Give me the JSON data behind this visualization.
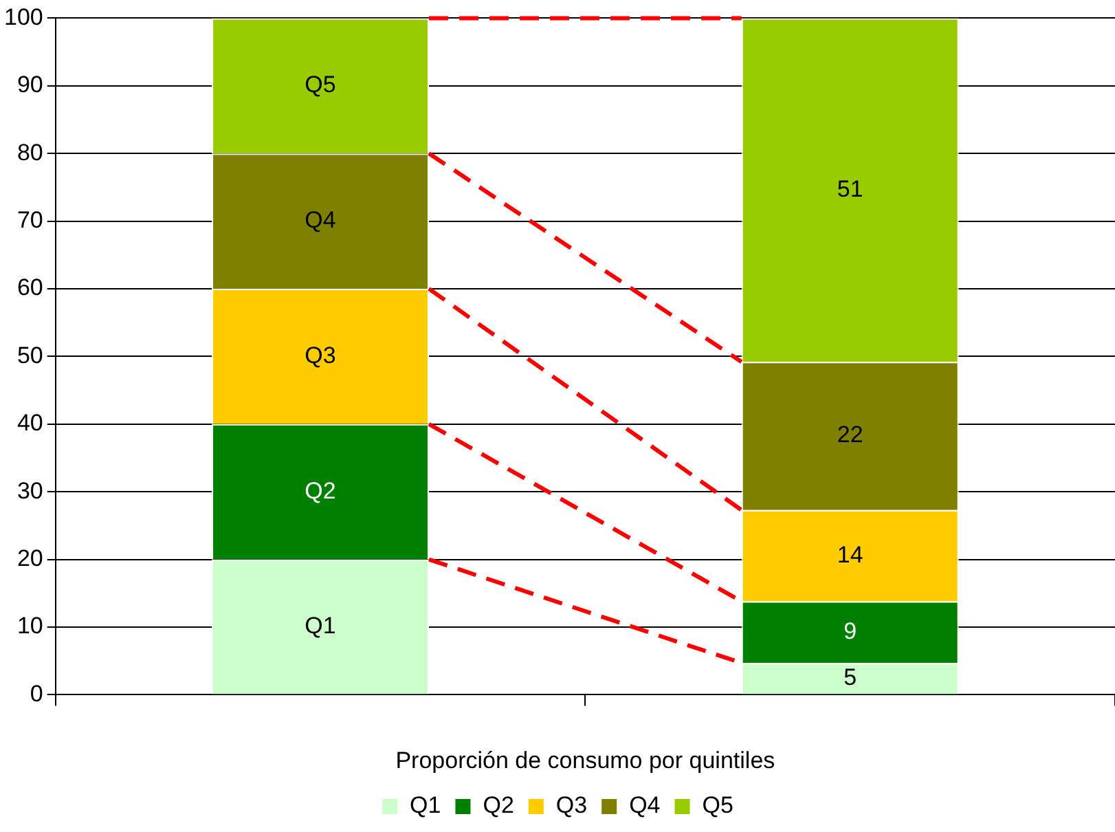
{
  "chart_data": {
    "type": "bar",
    "stacked": true,
    "xlabel": "Proporción de consumo por quintiles",
    "categories": [
      null,
      null
    ],
    "series": [
      {
        "name": "Q1",
        "color": "#ccffcc",
        "values": [
          20,
          4.7
        ],
        "value_labels": [
          "Q1",
          "5"
        ]
      },
      {
        "name": "Q2",
        "color": "#008000",
        "values": [
          20,
          9.1
        ],
        "value_labels": [
          "Q2",
          "9"
        ]
      },
      {
        "name": "Q3",
        "color": "#ffcc00",
        "values": [
          20,
          13.5
        ],
        "value_labels": [
          "Q3",
          "14"
        ]
      },
      {
        "name": "Q4",
        "color": "#808000",
        "values": [
          20,
          21.9
        ],
        "value_labels": [
          "Q4",
          "22"
        ]
      },
      {
        "name": "Q5",
        "color": "#99cc00",
        "values": [
          20,
          50.8
        ],
        "value_labels": [
          "Q5",
          "51"
        ]
      }
    ],
    "ylim": [
      0,
      100
    ],
    "yticks": [
      0,
      10,
      20,
      30,
      40,
      50,
      60,
      70,
      80,
      90,
      100
    ],
    "grid": "y",
    "legend": "bottom"
  }
}
